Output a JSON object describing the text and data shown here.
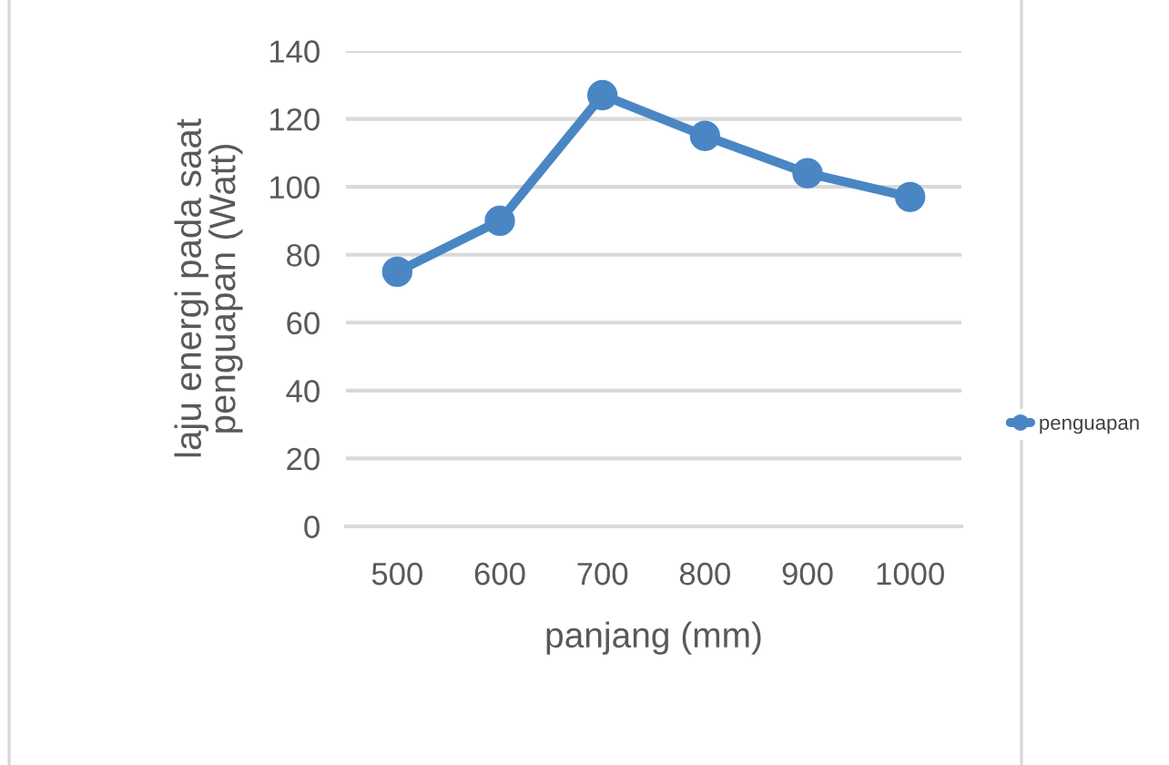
{
  "chart_data": {
    "type": "line",
    "xlabel": "panjang (mm)",
    "ylabel": "laju energi pada saat\npenguapan (Watt)",
    "categories": [
      "500",
      "600",
      "700",
      "800",
      "900",
      "1000"
    ],
    "series": [
      {
        "name": "penguapan",
        "color": "#4a86c4",
        "values": [
          75,
          90,
          127,
          115,
          104,
          97
        ]
      }
    ],
    "ylim": [
      0,
      140
    ],
    "yticks": [
      0,
      20,
      40,
      60,
      80,
      100,
      120,
      140
    ],
    "grid": "y",
    "legend": "right",
    "marker": "circle",
    "line_style": "solid"
  }
}
